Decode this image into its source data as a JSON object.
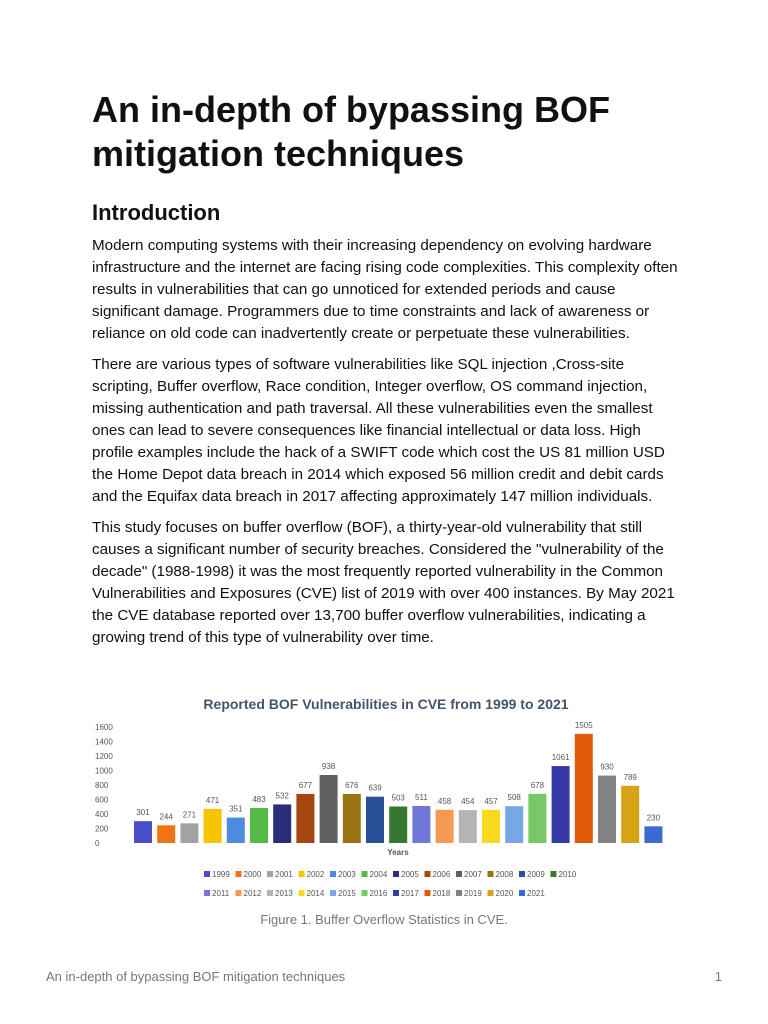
{
  "title": "An in-depth of bypassing BOF mitigation techniques",
  "section": "Introduction",
  "paragraphs": [
    "Modern computing systems with their increasing dependency on evolving hardware infrastructure and the internet are facing rising code complexities. This complexity often results in vulnerabilities that can go unnoticed for extended periods and cause significant damage. Programmers due to time constraints and lack of awareness or reliance on old code can inadvertently create or perpetuate these vulnerabilities.",
    "There are various types of software vulnerabilities like SQL injection ,Cross-site scripting, Buffer overflow, Race condition, Integer overflow, OS command injection, missing authentication and path traversal. All these vulnerabilities even the smallest ones can lead to severe consequences like financial intellectual or data loss. High profile examples include the hack of a SWIFT code which cost the US 81 million USD the Home Depot data breach in 2014 which exposed 56 million credit and debit cards and the Equifax data breach in 2017 affecting approximately 147 million individuals.",
    "This study focuses on buffer overflow (BOF), a thirty-year-old vulnerability that still causes a significant number of security breaches. Considered the \"vulnerability of the decade\" (1988-1998) it was the most frequently reported vulnerability in the Common Vulnerabilities and Exposures (CVE) list of 2019 with over 400 instances. By May 2021 the CVE database reported over 13,700 buffer overflow vulnerabilities, indicating a growing trend of this type of vulnerability over time."
  ],
  "chart_data": {
    "type": "bar",
    "title": "Reported BOF Vulnerabilities in CVE from 1999 to 2021",
    "xlabel": "Years",
    "ylabel": "",
    "ylim": [
      0,
      1600
    ],
    "yticks": [
      0,
      200,
      400,
      600,
      800,
      1000,
      1200,
      1400,
      1600
    ],
    "grid": false,
    "legend": "bottom",
    "categories": [
      "1999",
      "2000",
      "2001",
      "2002",
      "2003",
      "2004",
      "2005",
      "2006",
      "2007",
      "2008",
      "2009",
      "2010",
      "2011",
      "2012",
      "2013",
      "2014",
      "2015",
      "2016",
      "2017",
      "2018",
      "2019",
      "2020",
      "2021"
    ],
    "values": [
      301,
      244,
      271,
      471,
      351,
      483,
      532,
      677,
      938,
      676,
      639,
      503,
      511,
      458,
      454,
      457,
      508,
      678,
      1061,
      1505,
      930,
      789,
      230
    ],
    "colors": [
      "#4a4fc9",
      "#f07412",
      "#a2a2a2",
      "#f7c400",
      "#4d8ae0",
      "#55b945",
      "#2a2d7a",
      "#a4460f",
      "#606060",
      "#987512",
      "#294f98",
      "#37762e",
      "#7078d8",
      "#f59a55",
      "#b4b4b4",
      "#f9d820",
      "#79a7e5",
      "#76c966",
      "#363aa6",
      "#e05a08",
      "#828282",
      "#d4a416",
      "#3a6bd3"
    ]
  },
  "caption": "Figure 1. Buffer Overflow Statistics in CVE.",
  "footer": "An in-depth of bypassing BOF mitigation techniques",
  "page_number": "1"
}
